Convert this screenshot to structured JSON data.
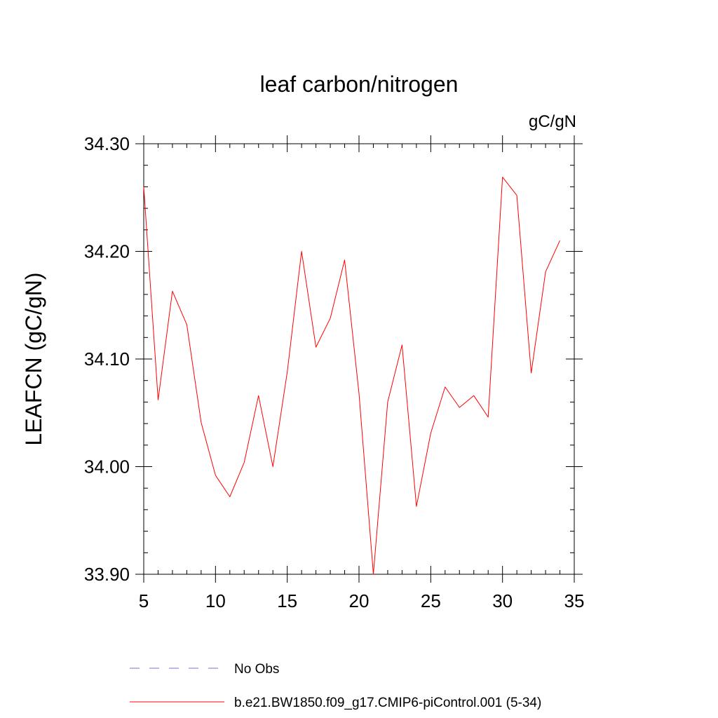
{
  "chart_data": {
    "type": "line",
    "title": "leaf carbon/nitrogen",
    "units_label": "gC/gN",
    "ylabel": "LEAFCN  (gC/gN)",
    "xlabel": "",
    "xlim": [
      5,
      35
    ],
    "ylim": [
      33.9,
      34.3
    ],
    "x_ticks": [
      "5",
      "10",
      "15",
      "20",
      "25",
      "30",
      "35"
    ],
    "y_ticks": [
      "33.90",
      "34.00",
      "34.10",
      "34.20",
      "34.30"
    ],
    "series": [
      {
        "name": "b.e21.BW1850.f09_g17.CMIP6-piControl.001 (5-34)",
        "color": "#ff0000",
        "style": "solid",
        "x": [
          5,
          6,
          7,
          8,
          9,
          10,
          11,
          12,
          13,
          14,
          15,
          16,
          17,
          18,
          19,
          20,
          21,
          22,
          23,
          24,
          25,
          26,
          27,
          28,
          29,
          30,
          31,
          32,
          33,
          34
        ],
        "y": [
          34.26,
          34.062,
          34.163,
          34.132,
          34.041,
          33.992,
          33.972,
          34.004,
          34.066,
          34.0,
          34.088,
          34.2,
          34.111,
          34.138,
          34.192,
          34.068,
          33.9,
          34.06,
          34.113,
          33.963,
          34.031,
          34.074,
          34.055,
          34.066,
          34.046,
          34.269,
          34.252,
          34.087,
          34.181,
          34.21
        ]
      }
    ],
    "legend": [
      {
        "label": "No Obs",
        "color": "#7b6fd6",
        "style": "dashed"
      },
      {
        "label": "b.e21.BW1850.f09_g17.CMIP6-piControl.001 (5-34)",
        "color": "#ff0000",
        "style": "solid"
      }
    ],
    "legend_placement": "bottom",
    "grid": false
  }
}
